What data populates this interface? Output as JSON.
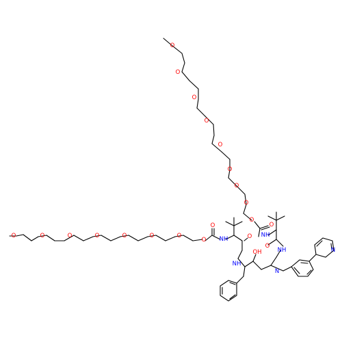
{
  "colors": {
    "background": "#ffffff",
    "carbon_bond": "#000000",
    "oxygen": "#ff0000",
    "nitrogen": "#0000ff"
  },
  "atom_labels": {
    "oxygen": "O",
    "nitrogen": "N",
    "amide_nh": "NH",
    "hydroxyl": "OH",
    "hydrazine_nh": "NH"
  }
}
